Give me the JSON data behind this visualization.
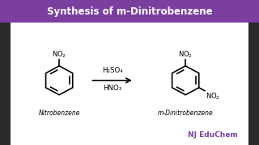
{
  "title": "Synthesis of m-Dinitrobenzene",
  "title_bg": "#7B3FA0",
  "title_color": "#FFFFFF",
  "body_bg": "#FFFFFF",
  "outer_bg": "#2a2a2a",
  "reagent_line1": "H₂SO₄",
  "reagent_line2": "HNO₃",
  "label_left": "Nitrobenzene",
  "label_right": "m-Dinitrobenzene",
  "watermark_text": "NJ EduChem",
  "watermark_bg": "#FFE500",
  "watermark_color": "#7B3FA0"
}
